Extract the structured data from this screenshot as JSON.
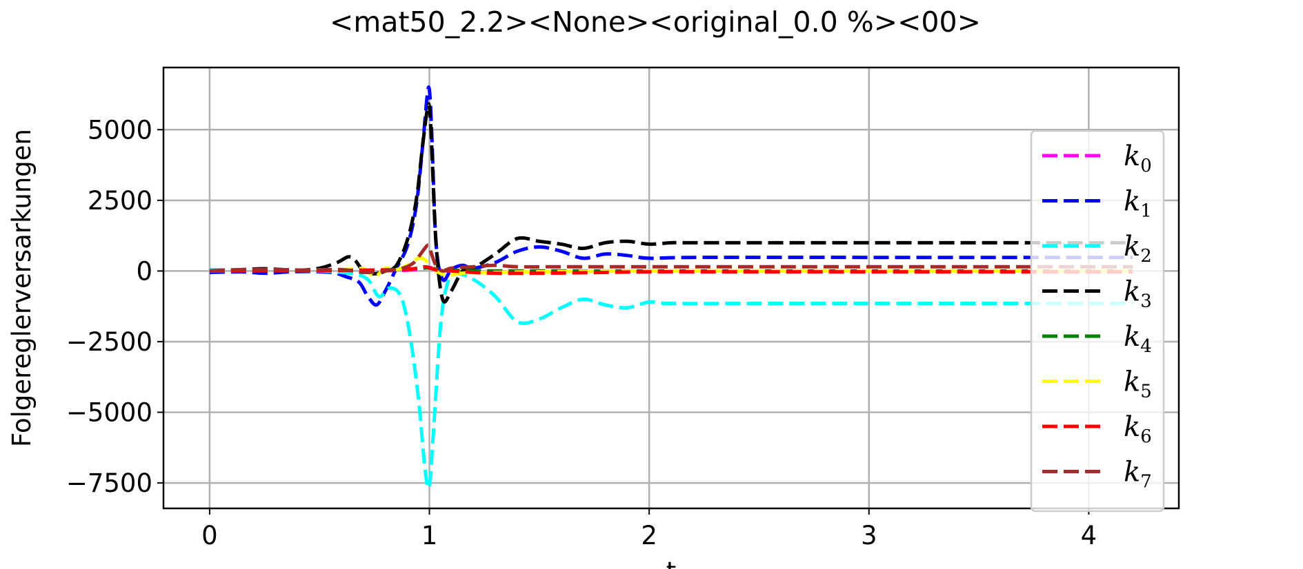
{
  "chart_data": {
    "type": "line",
    "title": "<mat50_2.2><None><original_0.0 %><00>",
    "xlabel": "t",
    "ylabel": "Folgereglerversarkungen",
    "xlim": [
      -0.21,
      4.41
    ],
    "ylim": [
      -8400,
      7200
    ],
    "xticks": [
      0,
      1,
      2,
      3,
      4
    ],
    "xtick_labels": [
      "0",
      "1",
      "2",
      "3",
      "4"
    ],
    "yticks": [
      -7500,
      -5000,
      -2500,
      0,
      2500,
      5000
    ],
    "ytick_labels": [
      "−7500",
      "−5000",
      "−2500",
      "0",
      "2500",
      "5000"
    ],
    "grid": true,
    "line_style": "dashed",
    "legend_position": "right",
    "series": [
      {
        "name": "k",
        "sub": "0",
        "color": "#ff00ff",
        "x": [
          0,
          0.3,
          0.6,
          0.8,
          0.9,
          0.95,
          1.0,
          1.05,
          1.1,
          1.2,
          1.3,
          1.5,
          2.0,
          3.0,
          4.2
        ],
        "y": [
          0,
          10,
          15,
          10,
          30,
          60,
          120,
          30,
          10,
          5,
          0,
          0,
          0,
          0,
          0
        ]
      },
      {
        "name": "k",
        "sub": "1",
        "color": "#0000ff",
        "x": [
          0,
          0.15,
          0.25,
          0.4,
          0.55,
          0.62,
          0.68,
          0.72,
          0.76,
          0.8,
          0.85,
          0.9,
          0.94,
          0.97,
          0.99,
          1.0,
          1.01,
          1.03,
          1.06,
          1.1,
          1.15,
          1.2,
          1.3,
          1.4,
          1.5,
          1.6,
          1.7,
          1.8,
          1.9,
          2.0,
          2.2,
          3.0,
          4.2
        ],
        "y": [
          -50,
          -30,
          -80,
          -20,
          -50,
          -200,
          -400,
          -900,
          -1200,
          -700,
          100,
          900,
          2300,
          4500,
          6200,
          6400,
          5000,
          1000,
          -300,
          50,
          200,
          100,
          300,
          700,
          850,
          700,
          450,
          600,
          550,
          450,
          480,
          480,
          480
        ]
      },
      {
        "name": "k",
        "sub": "2",
        "color": "#00ffff",
        "x": [
          0,
          0.2,
          0.5,
          0.65,
          0.72,
          0.77,
          0.82,
          0.87,
          0.91,
          0.95,
          0.98,
          1.0,
          1.02,
          1.05,
          1.08,
          1.12,
          1.2,
          1.3,
          1.4,
          1.5,
          1.6,
          1.7,
          1.8,
          1.9,
          2.0,
          2.1,
          2.5,
          3.0,
          4.2
        ],
        "y": [
          50,
          20,
          0,
          -100,
          -300,
          -900,
          -600,
          -900,
          -2200,
          -4500,
          -7000,
          -7600,
          -5500,
          -2000,
          -500,
          -100,
          -300,
          -900,
          -1800,
          -1700,
          -1300,
          -1000,
          -1200,
          -1300,
          -1100,
          -1150,
          -1150,
          -1150,
          -1150
        ]
      },
      {
        "name": "k",
        "sub": "3",
        "color": "#000000",
        "x": [
          0,
          0.15,
          0.25,
          0.4,
          0.5,
          0.58,
          0.63,
          0.66,
          0.7,
          0.75,
          0.8,
          0.85,
          0.9,
          0.94,
          0.97,
          0.99,
          1.0,
          1.01,
          1.03,
          1.06,
          1.1,
          1.15,
          1.2,
          1.3,
          1.4,
          1.5,
          1.6,
          1.7,
          1.8,
          1.9,
          2.0,
          2.1,
          2.2,
          3.0,
          4.2
        ],
        "y": [
          0,
          50,
          80,
          30,
          100,
          300,
          500,
          400,
          0,
          -100,
          0,
          200,
          1100,
          2500,
          4500,
          5700,
          5800,
          4500,
          1000,
          -1000,
          -700,
          0,
          100,
          600,
          1150,
          1050,
          950,
          800,
          1000,
          1050,
          950,
          1000,
          1000,
          1000,
          1000
        ]
      },
      {
        "name": "k",
        "sub": "4",
        "color": "#008000",
        "x": [
          0,
          0.3,
          0.6,
          0.8,
          0.9,
          0.97,
          1.0,
          1.05,
          1.1,
          1.2,
          1.4,
          2.0,
          3.0,
          4.2
        ],
        "y": [
          0,
          10,
          20,
          30,
          60,
          120,
          100,
          50,
          30,
          10,
          0,
          0,
          0,
          0
        ]
      },
      {
        "name": "k",
        "sub": "5",
        "color": "#ffff00",
        "x": [
          0,
          0.3,
          0.6,
          0.7,
          0.75,
          0.8,
          0.85,
          0.9,
          0.95,
          0.98,
          1.0,
          1.03,
          1.08,
          1.15,
          1.3,
          1.6,
          2.0,
          3.0,
          4.2
        ],
        "y": [
          0,
          20,
          50,
          80,
          -200,
          100,
          50,
          200,
          450,
          400,
          200,
          0,
          -150,
          -80,
          -50,
          -20,
          0,
          0,
          0
        ]
      },
      {
        "name": "k",
        "sub": "6",
        "color": "#ff0000",
        "x": [
          0,
          0.3,
          0.6,
          0.8,
          0.9,
          0.95,
          0.98,
          1.0,
          1.02,
          1.05,
          1.1,
          1.2,
          1.3,
          1.5,
          1.8,
          2.0,
          2.5,
          3.0,
          4.2
        ],
        "y": [
          0,
          10,
          20,
          40,
          60,
          100,
          150,
          120,
          60,
          20,
          0,
          -50,
          -80,
          -80,
          -50,
          -30,
          -30,
          -30,
          -30
        ]
      },
      {
        "name": "k",
        "sub": "7",
        "color": "#a52a2a",
        "x": [
          0,
          0.15,
          0.3,
          0.45,
          0.6,
          0.7,
          0.8,
          0.88,
          0.93,
          0.96,
          0.99,
          1.0,
          1.01,
          1.03,
          1.06,
          1.1,
          1.2,
          1.3,
          1.4,
          1.6,
          1.8,
          2.0,
          2.5,
          3.0,
          4.2
        ],
        "y": [
          0,
          50,
          50,
          30,
          50,
          -50,
          0,
          100,
          300,
          600,
          900,
          850,
          600,
          200,
          0,
          100,
          150,
          200,
          150,
          150,
          150,
          150,
          150,
          150,
          150
        ]
      }
    ]
  }
}
